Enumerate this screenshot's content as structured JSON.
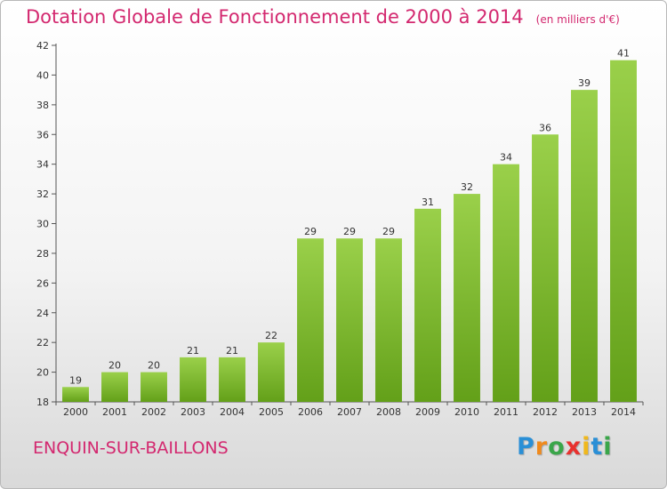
{
  "header": {
    "title": "Dotation Globale de Fonctionnement de 2000 à 2014",
    "subtitle": "(en milliers d'€)"
  },
  "footer": {
    "commune": "ENQUIN-SUR-BAILLONS",
    "logo_letters": [
      "P",
      "r",
      "o",
      "x",
      "i",
      "t",
      "i"
    ],
    "logo_colors": [
      "#2a8fd6",
      "#f08a1c",
      "#3aa64a",
      "#e8312e",
      "#f0b81c",
      "#2a8fd6",
      "#3aa64a"
    ]
  },
  "chart_data": {
    "type": "bar",
    "title": "Dotation Globale de Fonctionnement de 2000 à 2014",
    "subtitle": "(en milliers d'€)",
    "categories": [
      "2000",
      "2001",
      "2002",
      "2003",
      "2004",
      "2005",
      "2006",
      "2007",
      "2008",
      "2009",
      "2010",
      "2011",
      "2012",
      "2013",
      "2014"
    ],
    "values": [
      19,
      20,
      20,
      21,
      21,
      22,
      29,
      29,
      29,
      31,
      32,
      34,
      36,
      39,
      41
    ],
    "ylim": [
      18,
      42
    ],
    "yticks": [
      18,
      20,
      22,
      24,
      26,
      28,
      30,
      32,
      34,
      36,
      38,
      40,
      42
    ],
    "grid": false,
    "bar_color_light": "#9ad04a",
    "bar_color_dark": "#63a019",
    "xlabel": "",
    "ylabel": ""
  }
}
